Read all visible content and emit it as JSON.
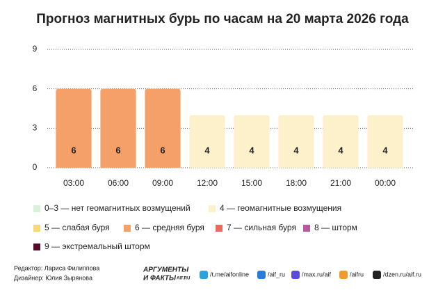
{
  "chart_data": {
    "type": "bar",
    "title": "Прогноз магнитных бурь по часам на 20 марта 2026 года",
    "categories": [
      "03:00",
      "06:00",
      "09:00",
      "12:00",
      "15:00",
      "18:00",
      "21:00",
      "00:00"
    ],
    "values": [
      6,
      6,
      6,
      4,
      4,
      4,
      4,
      4
    ],
    "colors": [
      "#f5a068",
      "#f5a068",
      "#f5a068",
      "#fdf1cc",
      "#fdf1cc",
      "#fdf1cc",
      "#fdf1cc",
      "#fdf1cc"
    ],
    "ylim": [
      0,
      9
    ],
    "yticks": [
      0,
      3,
      6,
      9
    ],
    "grid": true,
    "legend": [
      {
        "label": "0–3 — нет геомагнитных возмущений",
        "color": "#d9f0d9"
      },
      {
        "label": "4 — геомагнитные возмущения",
        "color": "#fdf1cc"
      },
      {
        "label": "5 — слабая буря",
        "color": "#f8d778"
      },
      {
        "label": "6 — средняя буря",
        "color": "#f5a068"
      },
      {
        "label": "7 — сильная буря",
        "color": "#ea6a5c"
      },
      {
        "label": "8 — шторм",
        "color": "#b75a9e"
      },
      {
        "label": "9 — экстремальный шторм",
        "color": "#5a0a28"
      }
    ]
  },
  "footer": {
    "editor": "Редактор: Лариса Филиппова",
    "designer": "Дизайнер: Юлия Зырянова",
    "logo": [
      "АРГУМЕНТЫ",
      "И ФАКТЫ",
      "AIF.RU"
    ],
    "links": [
      "/t.me/aifonline",
      "/aif_ru",
      "/max.ru/aif",
      "/aifru",
      "/dzen.ru/aif.ru"
    ]
  }
}
